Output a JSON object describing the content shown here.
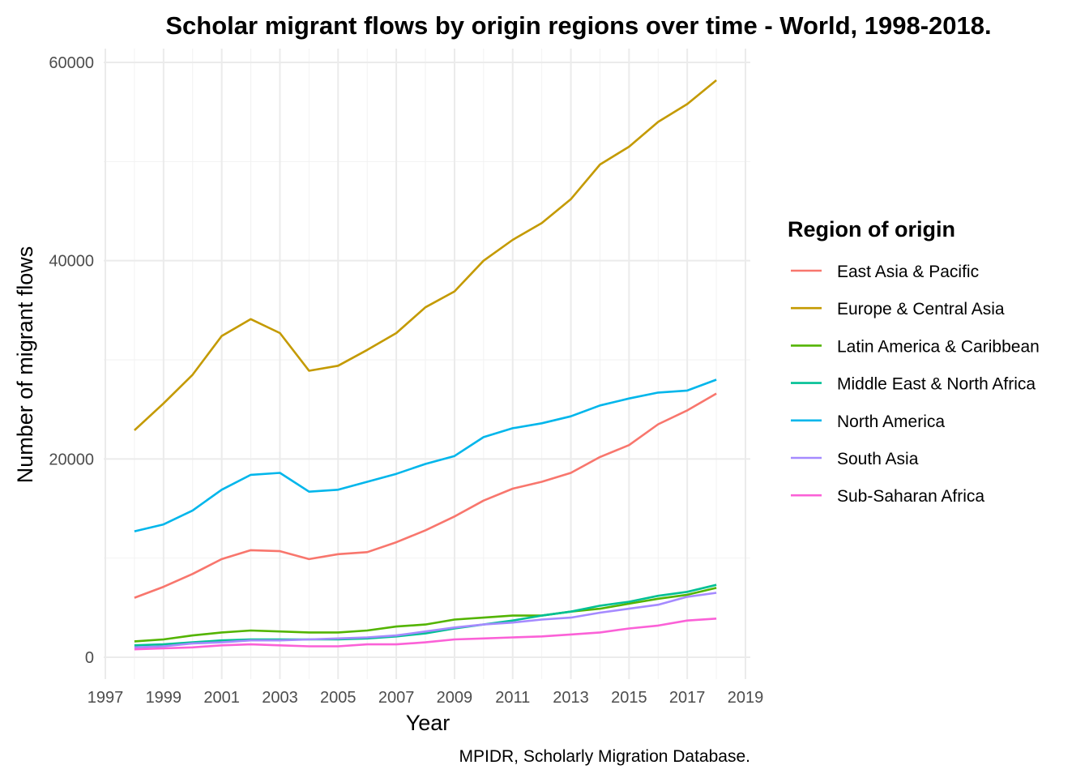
{
  "chart_data": {
    "type": "line",
    "title": "Scholar migrant flows by origin regions over time - World, 1998-2018.",
    "xlabel": "Year",
    "ylabel": "Number of migrant flows",
    "caption": "MPIDR, Scholarly Migration Database.",
    "legend_title": "Region of origin",
    "legend_position": "right",
    "grid": true,
    "xlim": [
      1997,
      2019
    ],
    "ylim": [
      0,
      60000
    ],
    "x_ticks": [
      1997,
      1999,
      2001,
      2003,
      2005,
      2007,
      2009,
      2011,
      2013,
      2015,
      2017,
      2019
    ],
    "y_ticks": [
      0,
      20000,
      40000,
      60000
    ],
    "x": [
      1998,
      1999,
      2000,
      2001,
      2002,
      2003,
      2004,
      2005,
      2006,
      2007,
      2008,
      2009,
      2010,
      2011,
      2012,
      2013,
      2014,
      2015,
      2016,
      2017,
      2018
    ],
    "series": [
      {
        "name": "East Asia & Pacific",
        "color": "#F8766D",
        "values": [
          6000,
          7100,
          8400,
          9900,
          10800,
          10700,
          9900,
          10400,
          10600,
          11600,
          12800,
          14200,
          15800,
          17000,
          17700,
          18600,
          20200,
          21400,
          23500,
          24900,
          26600
        ]
      },
      {
        "name": "Europe & Central Asia",
        "color": "#C49A00",
        "values": [
          22900,
          25600,
          28500,
          32400,
          34100,
          32700,
          28900,
          29400,
          31000,
          32700,
          35300,
          36900,
          40000,
          42100,
          43800,
          46200,
          49700,
          51500,
          54000,
          55800,
          58200
        ]
      },
      {
        "name": "Latin America & Caribbean",
        "color": "#53B400",
        "values": [
          1600,
          1800,
          2200,
          2500,
          2700,
          2600,
          2500,
          2500,
          2700,
          3100,
          3300,
          3800,
          4000,
          4200,
          4200,
          4600,
          4900,
          5400,
          5900,
          6300,
          7000
        ]
      },
      {
        "name": "Middle East & North Africa",
        "color": "#00C094",
        "values": [
          1200,
          1300,
          1500,
          1700,
          1800,
          1800,
          1800,
          1800,
          1900,
          2100,
          2400,
          2900,
          3300,
          3700,
          4200,
          4600,
          5200,
          5600,
          6200,
          6600,
          7300
        ]
      },
      {
        "name": "North America",
        "color": "#00B6EB",
        "values": [
          12700,
          13400,
          14800,
          16900,
          18400,
          18600,
          16700,
          16900,
          17700,
          18500,
          19500,
          20300,
          22200,
          23100,
          23600,
          24300,
          25400,
          26100,
          26700,
          26900,
          28000
        ]
      },
      {
        "name": "South Asia",
        "color": "#A58AFF",
        "values": [
          1000,
          1100,
          1400,
          1500,
          1700,
          1700,
          1800,
          1900,
          2000,
          2200,
          2600,
          3000,
          3300,
          3500,
          3800,
          4000,
          4500,
          4900,
          5300,
          6100,
          6500
        ]
      },
      {
        "name": "Sub-Saharan Africa",
        "color": "#FB61D7",
        "values": [
          800,
          900,
          1000,
          1200,
          1300,
          1200,
          1100,
          1100,
          1300,
          1300,
          1500,
          1800,
          1900,
          2000,
          2100,
          2300,
          2500,
          2900,
          3200,
          3700,
          3900
        ]
      }
    ]
  }
}
